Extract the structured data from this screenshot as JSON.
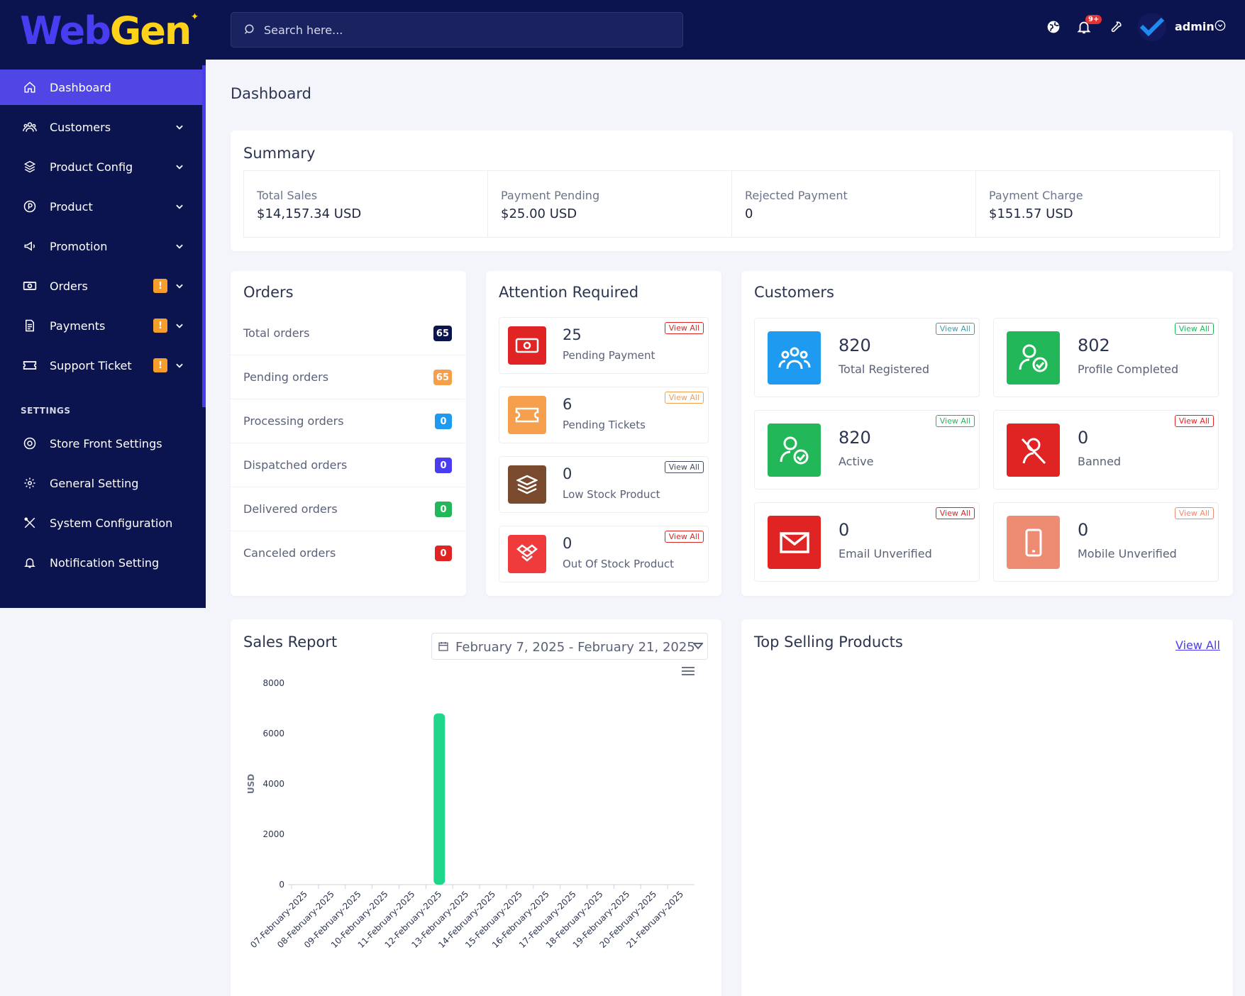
{
  "brand": {
    "part1": "Web",
    "part2": "Gen"
  },
  "search": {
    "placeholder": "Search here..."
  },
  "topbar": {
    "notification_count": "9+",
    "user_name": "admin"
  },
  "sidebar": {
    "items": [
      {
        "label": "Dashboard",
        "active": true
      },
      {
        "label": "Customers"
      },
      {
        "label": "Product Config"
      },
      {
        "label": "Product"
      },
      {
        "label": "Promotion"
      },
      {
        "label": "Orders",
        "alert": "!"
      },
      {
        "label": "Payments",
        "alert": "!"
      },
      {
        "label": "Support Ticket",
        "alert": "!"
      }
    ],
    "settings_header": "SETTINGS",
    "settings_items": [
      {
        "label": "Store Front Settings"
      },
      {
        "label": "General Setting"
      },
      {
        "label": "System Configuration"
      },
      {
        "label": "Notification Setting"
      }
    ]
  },
  "page": {
    "title": "Dashboard"
  },
  "summary": {
    "title": "Summary",
    "items": [
      {
        "label": "Total Sales",
        "value": "$14,157.34 USD"
      },
      {
        "label": "Payment Pending",
        "value": "$25.00 USD"
      },
      {
        "label": "Rejected Payment",
        "value": "0"
      },
      {
        "label": "Payment Charge",
        "value": "$151.57 USD"
      }
    ]
  },
  "orders": {
    "title": "Orders",
    "rows": [
      {
        "label": "Total orders",
        "count": "65",
        "color": "#0c1450"
      },
      {
        "label": "Pending orders",
        "count": "65",
        "color": "#f59e4b"
      },
      {
        "label": "Processing orders",
        "count": "0",
        "color": "#1e9bf0"
      },
      {
        "label": "Dispatched orders",
        "count": "0",
        "color": "#4a3cf0"
      },
      {
        "label": "Delivered orders",
        "count": "0",
        "color": "#22b85a"
      },
      {
        "label": "Canceled orders",
        "count": "0",
        "color": "#e02424"
      }
    ]
  },
  "attention": {
    "title": "Attention Required",
    "view_all": "View All",
    "items": [
      {
        "count": "25",
        "label": "Pending Payment",
        "icon": "money-icon",
        "color": "#e02424",
        "va_color": "#e02424"
      },
      {
        "count": "6",
        "label": "Pending Tickets",
        "icon": "ticket-icon",
        "color": "#f59e4b",
        "va_color": "#f59e4b"
      },
      {
        "count": "0",
        "label": "Low Stock Product",
        "icon": "layers-icon",
        "color": "#7a4a2e",
        "va_color": "#444b5f"
      },
      {
        "count": "0",
        "label": "Out Of Stock Product",
        "icon": "dropbox-icon",
        "color": "#ef3b3b",
        "va_color": "#e02424"
      }
    ]
  },
  "customers": {
    "title": "Customers",
    "view_all": "View All",
    "items": [
      {
        "count": "820",
        "label": "Total Registered",
        "icon": "users-group-icon",
        "color": "#1e9bf0",
        "va_color": "#38a0b0"
      },
      {
        "count": "802",
        "label": "Profile Completed",
        "icon": "user-check-icon",
        "color": "#22b85a",
        "va_color": "#22b85a"
      },
      {
        "count": "820",
        "label": "Active",
        "icon": "user-check-icon",
        "color": "#22b85a",
        "va_color": "#22b85a"
      },
      {
        "count": "0",
        "label": "Banned",
        "icon": "banned-icon",
        "color": "#e02424",
        "va_color": "#e02424"
      },
      {
        "count": "0",
        "label": "Email Unverified",
        "icon": "envelope-icon",
        "color": "#e02424",
        "va_color": "#e02424"
      },
      {
        "count": "0",
        "label": "Mobile Unverified",
        "icon": "mobile-icon",
        "color": "#ee8b73",
        "va_color": "#ee8b73"
      }
    ]
  },
  "sales_report": {
    "title": "Sales Report",
    "date_range": "February 7, 2025 - February 21, 2025"
  },
  "top_selling": {
    "title": "Top Selling Products",
    "view_all": "View All"
  },
  "chart_data": {
    "type": "bar",
    "categories": [
      "07-February-2025",
      "08-February-2025",
      "09-February-2025",
      "10-February-2025",
      "11-February-2025",
      "12-February-2025",
      "13-February-2025",
      "14-February-2025",
      "15-February-2025",
      "16-February-2025",
      "17-February-2025",
      "18-February-2025",
      "19-February-2025",
      "20-February-2025",
      "21-February-2025"
    ],
    "values": [
      0,
      0,
      0,
      0,
      0,
      6800,
      0,
      0,
      0,
      0,
      0,
      0,
      0,
      0,
      0
    ],
    "ylabel": "USD",
    "ylim": [
      0,
      8000
    ],
    "yticks": [
      "0",
      "2000",
      "4000",
      "6000",
      "8000"
    ],
    "bar_color": "#1fd68a",
    "grid": false
  }
}
